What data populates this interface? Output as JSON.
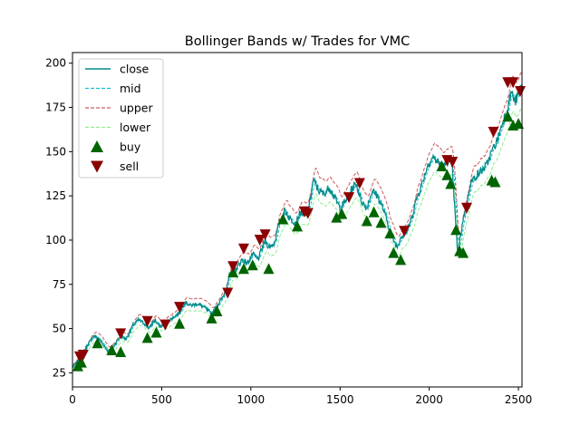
{
  "chart_data": {
    "type": "line",
    "title": "Bollinger Bands w/ Trades for VMC",
    "xlabel": "",
    "ylabel": "",
    "xlim": [
      0,
      2520
    ],
    "ylim": [
      17,
      206
    ],
    "xticks": [
      0,
      500,
      1000,
      1500,
      2000,
      2500
    ],
    "yticks": [
      25,
      50,
      75,
      100,
      125,
      150,
      175,
      200
    ],
    "grid": false,
    "legend_position": "top-left",
    "band_width_fraction": 0.055,
    "close_points": [
      [
        0,
        28
      ],
      [
        40,
        33
      ],
      [
        80,
        40
      ],
      [
        120,
        46
      ],
      [
        150,
        44
      ],
      [
        180,
        40
      ],
      [
        200,
        37
      ],
      [
        230,
        40
      ],
      [
        270,
        46
      ],
      [
        300,
        44
      ],
      [
        340,
        52
      ],
      [
        370,
        55
      ],
      [
        400,
        53
      ],
      [
        430,
        50
      ],
      [
        460,
        55
      ],
      [
        490,
        51
      ],
      [
        520,
        53
      ],
      [
        560,
        56
      ],
      [
        600,
        59
      ],
      [
        630,
        65
      ],
      [
        660,
        63
      ],
      [
        700,
        64
      ],
      [
        740,
        62
      ],
      [
        780,
        58
      ],
      [
        810,
        63
      ],
      [
        840,
        67
      ],
      [
        860,
        72
      ],
      [
        880,
        80
      ],
      [
        920,
        84
      ],
      [
        950,
        89
      ],
      [
        980,
        87
      ],
      [
        1010,
        92
      ],
      [
        1040,
        89
      ],
      [
        1080,
        100
      ],
      [
        1100,
        96
      ],
      [
        1130,
        98
      ],
      [
        1160,
        110
      ],
      [
        1190,
        117
      ],
      [
        1220,
        112
      ],
      [
        1250,
        110
      ],
      [
        1280,
        116
      ],
      [
        1310,
        113
      ],
      [
        1330,
        121
      ],
      [
        1350,
        134
      ],
      [
        1380,
        128
      ],
      [
        1410,
        126
      ],
      [
        1440,
        130
      ],
      [
        1470,
        124
      ],
      [
        1500,
        118
      ],
      [
        1530,
        122
      ],
      [
        1560,
        128
      ],
      [
        1590,
        132
      ],
      [
        1620,
        122
      ],
      [
        1650,
        118
      ],
      [
        1680,
        128
      ],
      [
        1710,
        125
      ],
      [
        1740,
        118
      ],
      [
        1760,
        112
      ],
      [
        1780,
        105
      ],
      [
        1800,
        100
      ],
      [
        1820,
        96
      ],
      [
        1840,
        102
      ],
      [
        1870,
        104
      ],
      [
        1900,
        112
      ],
      [
        1930,
        124
      ],
      [
        1960,
        132
      ],
      [
        1990,
        142
      ],
      [
        2020,
        147
      ],
      [
        2050,
        144
      ],
      [
        2080,
        141
      ],
      [
        2110,
        146
      ],
      [
        2130,
        140
      ],
      [
        2150,
        106
      ],
      [
        2160,
        92
      ],
      [
        2175,
        102
      ],
      [
        2190,
        112
      ],
      [
        2210,
        120
      ],
      [
        2230,
        132
      ],
      [
        2260,
        136
      ],
      [
        2290,
        139
      ],
      [
        2320,
        142
      ],
      [
        2350,
        150
      ],
      [
        2380,
        156
      ],
      [
        2410,
        166
      ],
      [
        2440,
        175
      ],
      [
        2460,
        184
      ],
      [
        2480,
        178
      ],
      [
        2500,
        182
      ],
      [
        2520,
        188
      ]
    ],
    "buy_points": [
      [
        30,
        29
      ],
      [
        50,
        31
      ],
      [
        140,
        42
      ],
      [
        220,
        38
      ],
      [
        270,
        37
      ],
      [
        420,
        45
      ],
      [
        470,
        48
      ],
      [
        600,
        53
      ],
      [
        780,
        56
      ],
      [
        810,
        60
      ],
      [
        900,
        82
      ],
      [
        960,
        84
      ],
      [
        1010,
        86
      ],
      [
        1100,
        84
      ],
      [
        1180,
        112
      ],
      [
        1260,
        108
      ],
      [
        1480,
        113
      ],
      [
        1510,
        115
      ],
      [
        1650,
        111
      ],
      [
        1690,
        116
      ],
      [
        1730,
        110
      ],
      [
        1780,
        104
      ],
      [
        1800,
        93
      ],
      [
        1840,
        89
      ],
      [
        2070,
        142
      ],
      [
        2100,
        137
      ],
      [
        2120,
        132
      ],
      [
        2150,
        106
      ],
      [
        2170,
        94
      ],
      [
        2190,
        93
      ],
      [
        2350,
        134
      ],
      [
        2370,
        133
      ],
      [
        2440,
        170
      ],
      [
        2470,
        165
      ],
      [
        2500,
        166
      ]
    ],
    "sell_points": [
      [
        40,
        34
      ],
      [
        60,
        35
      ],
      [
        270,
        47
      ],
      [
        420,
        54
      ],
      [
        520,
        52
      ],
      [
        600,
        62
      ],
      [
        870,
        70
      ],
      [
        900,
        85
      ],
      [
        960,
        95
      ],
      [
        1050,
        100
      ],
      [
        1080,
        103
      ],
      [
        1300,
        116
      ],
      [
        1320,
        115
      ],
      [
        1550,
        124
      ],
      [
        1610,
        132
      ],
      [
        1860,
        105
      ],
      [
        2100,
        145
      ],
      [
        2130,
        144
      ],
      [
        2210,
        118
      ],
      [
        2360,
        161
      ],
      [
        2440,
        189
      ],
      [
        2470,
        189
      ],
      [
        2510,
        184
      ]
    ],
    "series": [
      {
        "name": "close",
        "color": "#008b8b",
        "style": "solid"
      },
      {
        "name": "mid",
        "color": "#17becf",
        "style": "dashed"
      },
      {
        "name": "upper",
        "color": "#cd5c5c",
        "style": "dashed"
      },
      {
        "name": "lower",
        "color": "#90ee90",
        "style": "dashed"
      },
      {
        "name": "buy",
        "color": "#006400",
        "marker": "triangle-up"
      },
      {
        "name": "sell",
        "color": "#8b0000",
        "marker": "triangle-down"
      }
    ]
  }
}
